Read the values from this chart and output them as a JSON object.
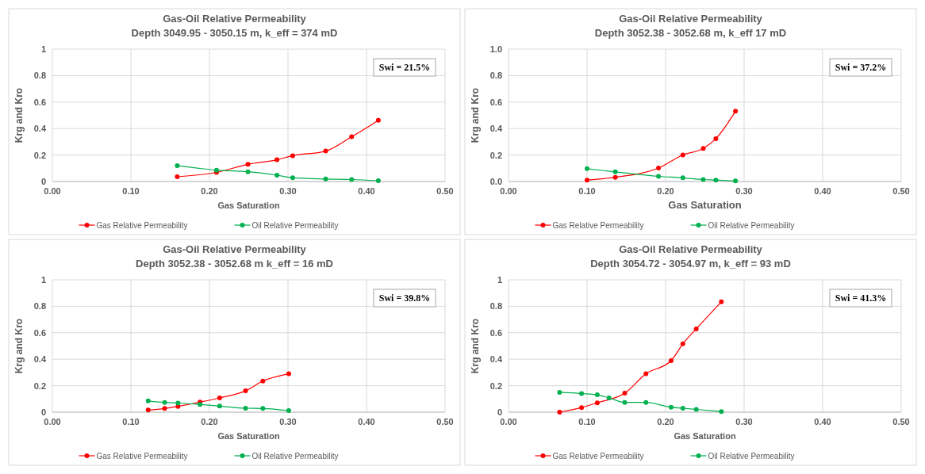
{
  "chart_data": [
    {
      "type": "line",
      "title": "Gas-Oil Relative Permeability",
      "subtitle": "Depth 3049.95 - 3050.15 m, k_eff = 374 mD",
      "xlabel": "Gas Saturation",
      "ylabel": "Krg and Kro",
      "annotations": [
        "Swi = 21.5%"
      ],
      "marker": "circle",
      "grid": true,
      "legend": "bottom",
      "xlim": [
        0,
        0.5
      ],
      "xticks": [
        {
          "value": 0,
          "label": "0.00"
        },
        {
          "value": 0.1,
          "label": "0.10"
        },
        {
          "value": 0.2,
          "label": "0.20"
        },
        {
          "value": 0.3,
          "label": "0.30"
        },
        {
          "value": 0.4,
          "label": "0.40"
        },
        {
          "value": 0.5,
          "label": "0.50"
        }
      ],
      "ylim": [
        0,
        1
      ],
      "yticks": [
        0,
        0.2,
        0.4,
        0.6,
        0.8,
        1
      ],
      "series": [
        {
          "name": "Gas Relative Permeability",
          "color": "#ff0000",
          "x": [
            0.159,
            0.209,
            0.249,
            0.286,
            0.306,
            0.348,
            0.381,
            0.415
          ],
          "values": [
            0.036,
            0.069,
            0.13,
            0.164,
            0.195,
            0.23,
            0.338,
            0.462
          ]
        },
        {
          "name": "Oil Relative Permeability",
          "color": "#00b050",
          "x": [
            0.159,
            0.209,
            0.249,
            0.286,
            0.306,
            0.348,
            0.381,
            0.415
          ],
          "values": [
            0.12,
            0.086,
            0.074,
            0.048,
            0.029,
            0.019,
            0.015,
            0.006
          ]
        }
      ]
    },
    {
      "type": "line",
      "title": "Gas-Oil Relative Permeability",
      "subtitle": "Depth 3052.38 - 3052.68 m, k_eff 17 mD",
      "xlabel": "Gas Saturation",
      "ylabel": "Krg and Kro",
      "annotations": [
        "Swi = 37.2%"
      ],
      "marker": "circle",
      "grid": true,
      "legend": "bottom",
      "xlim": [
        0,
        0.5
      ],
      "xticks": [
        {
          "value": 0,
          "label": "0.00"
        },
        {
          "value": 0.1,
          "label": "0.10"
        },
        {
          "value": 0.2,
          "label": "0.20"
        },
        {
          "value": 0.3,
          "label": "0.30"
        },
        {
          "value": 0.4,
          "label": "0.40"
        },
        {
          "value": 0.5,
          "label": "0.50"
        }
      ],
      "ylim": [
        0,
        1
      ],
      "yticks": [
        {
          "value": 0,
          "label": "0.0"
        },
        {
          "value": 0.2,
          "label": "0.2"
        },
        {
          "value": 0.4,
          "label": "0.4"
        },
        {
          "value": 0.6,
          "label": "0.6"
        },
        {
          "value": 0.8,
          "label": "0.8"
        },
        {
          "value": 1,
          "label": "1.0"
        }
      ],
      "series": [
        {
          "name": "Gas Relative Permeability",
          "color": "#ff0000",
          "x": [
            0.1,
            0.136,
            0.191,
            0.222,
            0.248,
            0.264,
            0.289
          ],
          "values": [
            0.011,
            0.032,
            0.102,
            0.201,
            0.25,
            0.324,
            0.531
          ]
        },
        {
          "name": "Oil Relative Permeability",
          "color": "#00b050",
          "x": [
            0.1,
            0.136,
            0.191,
            0.222,
            0.248,
            0.264,
            0.289
          ],
          "values": [
            0.097,
            0.073,
            0.039,
            0.028,
            0.015,
            0.011,
            0.004
          ]
        }
      ]
    },
    {
      "type": "line",
      "title": "Gas-Oil Relative Permeability",
      "subtitle": "Depth 3052.38 - 3052.68 m k_eff = 16 mD",
      "xlabel": "Gas Saturation",
      "ylabel": "Krg and Kro",
      "annotations": [
        "Swi = 39.8%"
      ],
      "marker": "circle",
      "grid": true,
      "legend": "bottom",
      "xlim": [
        0,
        0.5
      ],
      "xticks": [
        {
          "value": 0,
          "label": "0.00"
        },
        {
          "value": 0.1,
          "label": "0.10"
        },
        {
          "value": 0.2,
          "label": "0.20"
        },
        {
          "value": 0.3,
          "label": "0.30"
        },
        {
          "value": 0.4,
          "label": "0.40"
        },
        {
          "value": 0.5,
          "label": "0.50"
        }
      ],
      "ylim": [
        0,
        1
      ],
      "yticks": [
        0,
        0.2,
        0.4,
        0.6,
        0.8,
        1
      ],
      "series": [
        {
          "name": "Gas Relative Permeability",
          "color": "#ff0000",
          "x": [
            0.122,
            0.143,
            0.16,
            0.188,
            0.213,
            0.246,
            0.268,
            0.301
          ],
          "values": [
            0.016,
            0.028,
            0.044,
            0.076,
            0.108,
            0.161,
            0.235,
            0.29
          ]
        },
        {
          "name": "Oil Relative Permeability",
          "color": "#00b050",
          "x": [
            0.122,
            0.143,
            0.16,
            0.188,
            0.213,
            0.246,
            0.268,
            0.301
          ],
          "values": [
            0.085,
            0.074,
            0.069,
            0.058,
            0.046,
            0.03,
            0.028,
            0.012
          ]
        }
      ]
    },
    {
      "type": "line",
      "title": "Gas-Oil Relative Permeability",
      "subtitle": "Depth 3054.72 - 3054.97 m, k_eff = 93 mD",
      "xlabel": "Gas Saturation",
      "ylabel": "Krg and Kro",
      "annotations": [
        "Swi = 41.3%"
      ],
      "marker": "circle",
      "grid": true,
      "legend": "bottom",
      "xlim": [
        0,
        0.5
      ],
      "xticks": [
        {
          "value": 0,
          "label": "0.00"
        },
        {
          "value": 0.1,
          "label": "0.10"
        },
        {
          "value": 0.2,
          "label": "0.20"
        },
        {
          "value": 0.3,
          "label": "0.30"
        },
        {
          "value": 0.4,
          "label": "0.40"
        },
        {
          "value": 0.5,
          "label": "0.50"
        }
      ],
      "ylim": [
        0,
        1
      ],
      "yticks": [
        0,
        0.2,
        0.4,
        0.6,
        0.8,
        1
      ],
      "series": [
        {
          "name": "Gas Relative Permeability",
          "color": "#ff0000",
          "x": [
            0.065,
            0.093,
            0.113,
            0.148,
            0.175,
            0.207,
            0.222,
            0.239,
            0.271
          ],
          "values": [
            0.0,
            0.035,
            0.071,
            0.143,
            0.29,
            0.389,
            0.516,
            0.629,
            0.834
          ]
        },
        {
          "name": "Oil Relative Permeability",
          "color": "#00b050",
          "x": [
            0.065,
            0.093,
            0.113,
            0.128,
            0.148,
            0.175,
            0.207,
            0.222,
            0.239,
            0.271
          ],
          "values": [
            0.15,
            0.141,
            0.131,
            0.108,
            0.074,
            0.074,
            0.037,
            0.03,
            0.021,
            0.005
          ]
        }
      ]
    }
  ]
}
